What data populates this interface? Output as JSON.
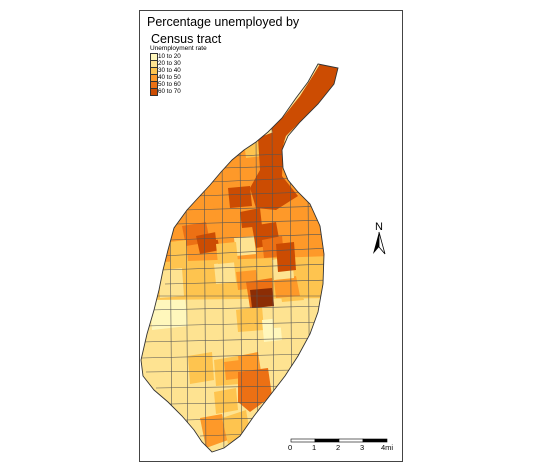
{
  "title": [
    "Percentage unemployed by",
    "Census tract"
  ],
  "legend": {
    "title": "Unemployment rate",
    "items": [
      {
        "label": "10 to 20",
        "color": "#fff7bc"
      },
      {
        "label": "20 to 30",
        "color": "#fee391"
      },
      {
        "label": "30 to 40",
        "color": "#fec44f"
      },
      {
        "label": "40 to 50",
        "color": "#fe9929"
      },
      {
        "label": "50 to 60",
        "color": "#ec7014"
      },
      {
        "label": "60 to 70",
        "color": "#cc4c02"
      }
    ]
  },
  "north_arrow": {
    "label": "N"
  },
  "scale_bar": {
    "labels": [
      "0",
      "1",
      "2",
      "3",
      "4mi"
    ]
  },
  "colors": {
    "border": "#555555",
    "darkest": "#8c2d04"
  }
}
